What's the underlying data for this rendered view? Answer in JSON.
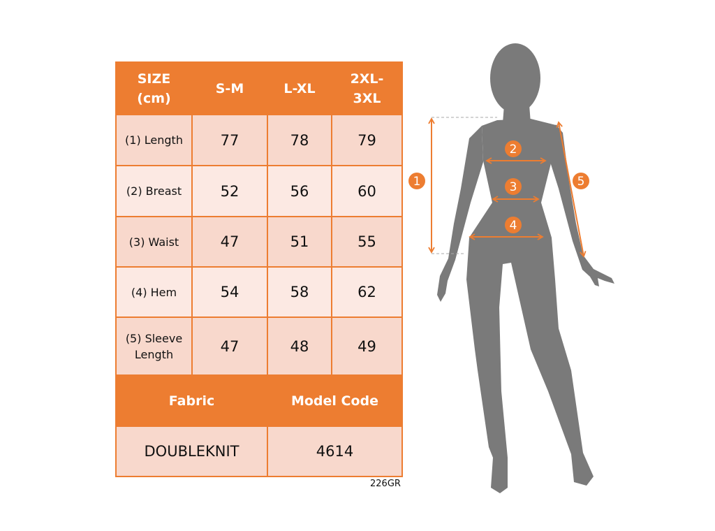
{
  "table": {
    "headers": [
      "SIZE\n(cm)",
      "S-M",
      "L-XL",
      "2XL-\n3XL"
    ],
    "header_lines": [
      [
        "SIZE",
        "(cm)"
      ],
      [
        "S-M"
      ],
      [
        "L-XL"
      ],
      [
        "2XL-",
        "3XL"
      ]
    ],
    "rows": [
      {
        "label": [
          "(1) Length"
        ],
        "values": [
          "77",
          "78",
          "79"
        ]
      },
      {
        "label": [
          "(2) Breast"
        ],
        "values": [
          "52",
          "56",
          "60"
        ]
      },
      {
        "label": [
          "(3) Waist"
        ],
        "values": [
          "47",
          "51",
          "55"
        ]
      },
      {
        "label": [
          "(4) Hem"
        ],
        "values": [
          "54",
          "58",
          "62"
        ]
      },
      {
        "label": [
          "(5) Sleeve",
          "Length"
        ],
        "values": [
          "47",
          "48",
          "49"
        ]
      }
    ],
    "footer_headers": [
      "Fabric",
      "Model Code"
    ],
    "footer_values": [
      "DOUBLEKNIT",
      "4614"
    ]
  },
  "product_code": "226GR",
  "figure": {
    "markers": [
      "1",
      "2",
      "3",
      "4",
      "5"
    ]
  },
  "colors": {
    "accent": "#ED7D31",
    "cell_dark": "#F8D8CC",
    "cell_light": "#FCE9E3",
    "silhouette": "#7A7A7A"
  }
}
